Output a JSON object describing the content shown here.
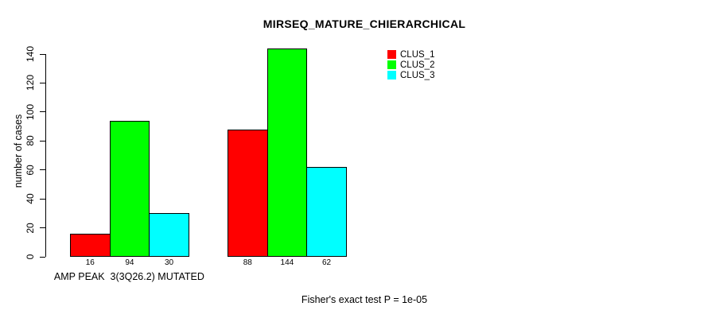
{
  "chart_data": {
    "type": "bar",
    "title": "MIRSEQ_MATURE_CHIERARCHICAL",
    "ylabel": "number of cases",
    "ylim": [
      0,
      140
    ],
    "yticks": [
      0,
      20,
      40,
      60,
      80,
      100,
      120,
      140
    ],
    "categories": [
      "AMP PEAK  3(3Q26.2) MUTATED",
      ""
    ],
    "series": [
      {
        "name": "CLUS_1",
        "color": "#FF0000",
        "values": [
          16,
          88
        ]
      },
      {
        "name": "CLUS_2",
        "color": "#00FF00",
        "values": [
          94,
          144
        ]
      },
      {
        "name": "CLUS_3",
        "color": "#00FFFF",
        "values": [
          30,
          62
        ]
      }
    ],
    "bar_value_labels": [
      [
        16,
        94,
        30
      ],
      [
        88,
        144,
        62
      ]
    ],
    "grid": false,
    "legend_position": "top-right",
    "annotation": "Fisher's exact test P = 1e-05"
  }
}
